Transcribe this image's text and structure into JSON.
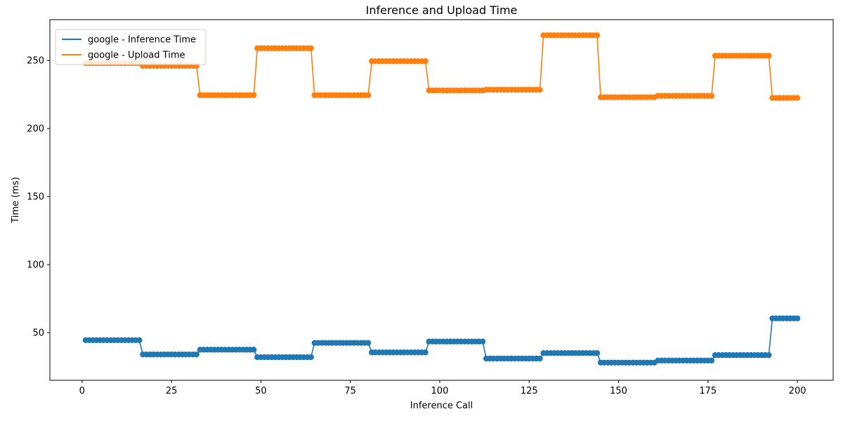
{
  "chart_data": {
    "type": "line",
    "title": "Inference and Upload Time",
    "xlabel": "Inference Call",
    "ylabel": "Time (ms)",
    "xlim": [
      -9,
      210
    ],
    "ylim": [
      15,
      280
    ],
    "xticks": [
      0,
      25,
      50,
      75,
      100,
      125,
      150,
      175,
      200
    ],
    "yticks": [
      50,
      100,
      150,
      200,
      250
    ],
    "legend_position": "upper-left",
    "markers": "circle",
    "x_start": 1,
    "x_end": 200,
    "points_per_segment": 16,
    "series": [
      {
        "name": "google - Inference Time",
        "color": "#1f77b4",
        "segment_values": [
          44.5,
          34.0,
          37.5,
          32.0,
          42.5,
          35.5,
          43.5,
          31.0,
          35.0,
          28.0,
          29.5,
          33.5,
          60.5
        ]
      },
      {
        "name": "google - Upload Time",
        "color": "#ff7f0e",
        "segment_values": [
          248.0,
          246.0,
          224.5,
          259.0,
          224.5,
          249.5,
          228.0,
          228.5,
          268.5,
          223.0,
          224.0,
          253.5,
          222.5
        ]
      }
    ]
  }
}
